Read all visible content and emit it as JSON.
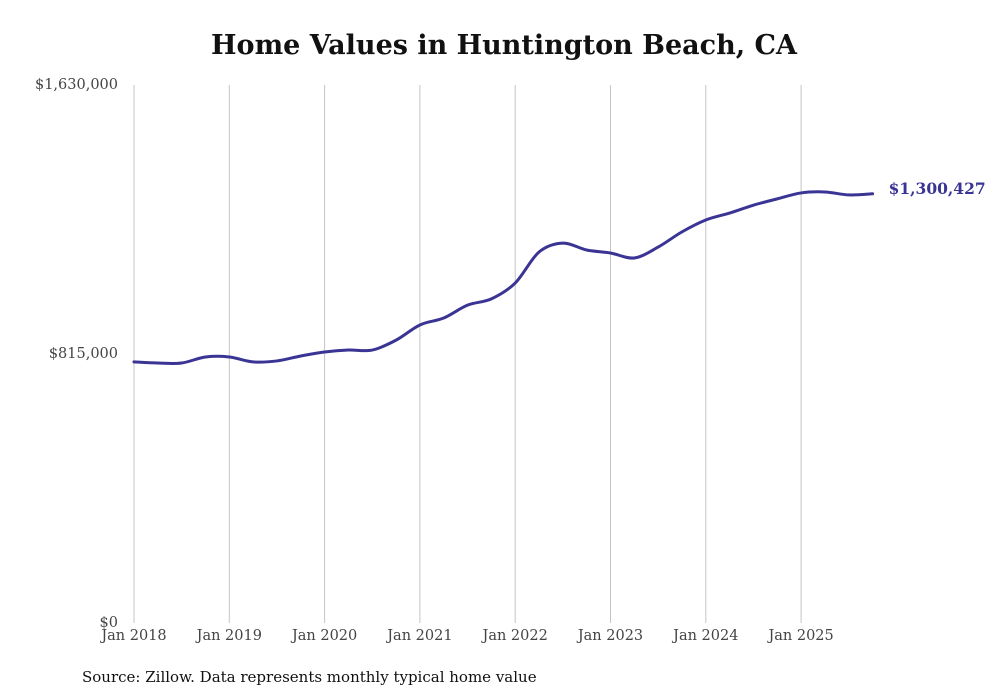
{
  "chart_data": {
    "type": "line",
    "title": "Home Values in Huntington Beach, CA",
    "source": "Source: Zillow. Data represents monthly typical home value",
    "xlabel": "",
    "ylabel": "",
    "ylim": [
      0,
      1630000
    ],
    "y_ticks": [
      {
        "value": 0,
        "label": "$0"
      },
      {
        "value": 815000,
        "label": "$815,000"
      },
      {
        "value": 1630000,
        "label": "$1,630,000"
      }
    ],
    "x_ticks": [
      {
        "value": "2018-01",
        "label": "Jan 2018"
      },
      {
        "value": "2019-01",
        "label": "Jan 2019"
      },
      {
        "value": "2020-01",
        "label": "Jan 2020"
      },
      {
        "value": "2021-01",
        "label": "Jan 2021"
      },
      {
        "value": "2022-01",
        "label": "Jan 2022"
      },
      {
        "value": "2023-01",
        "label": "Jan 2023"
      },
      {
        "value": "2024-01",
        "label": "Jan 2024"
      },
      {
        "value": "2025-01",
        "label": "Jan 2025"
      }
    ],
    "grid": "vertical",
    "line_color": "#3a3494",
    "end_label": "$1,300,427",
    "series": [
      {
        "name": "Typical home value",
        "x": [
          "2018-01",
          "2018-04",
          "2018-07",
          "2018-10",
          "2019-01",
          "2019-04",
          "2019-07",
          "2019-10",
          "2020-01",
          "2020-04",
          "2020-07",
          "2020-10",
          "2021-01",
          "2021-04",
          "2021-07",
          "2021-10",
          "2022-01",
          "2022-04",
          "2022-07",
          "2022-10",
          "2023-01",
          "2023-04",
          "2023-07",
          "2023-10",
          "2024-01",
          "2024-04",
          "2024-07",
          "2024-10",
          "2025-01",
          "2025-04",
          "2025-07",
          "2025-10"
        ],
        "values": [
          791000,
          787700,
          787700,
          805900,
          806000,
          791000,
          794000,
          809000,
          821000,
          827000,
          827000,
          857000,
          903000,
          924000,
          963000,
          982000,
          1030000,
          1124000,
          1151000,
          1130000,
          1121000,
          1106000,
          1139000,
          1185000,
          1221000,
          1242000,
          1266000,
          1285000,
          1303000,
          1306000,
          1297000,
          1300427
        ]
      }
    ]
  }
}
